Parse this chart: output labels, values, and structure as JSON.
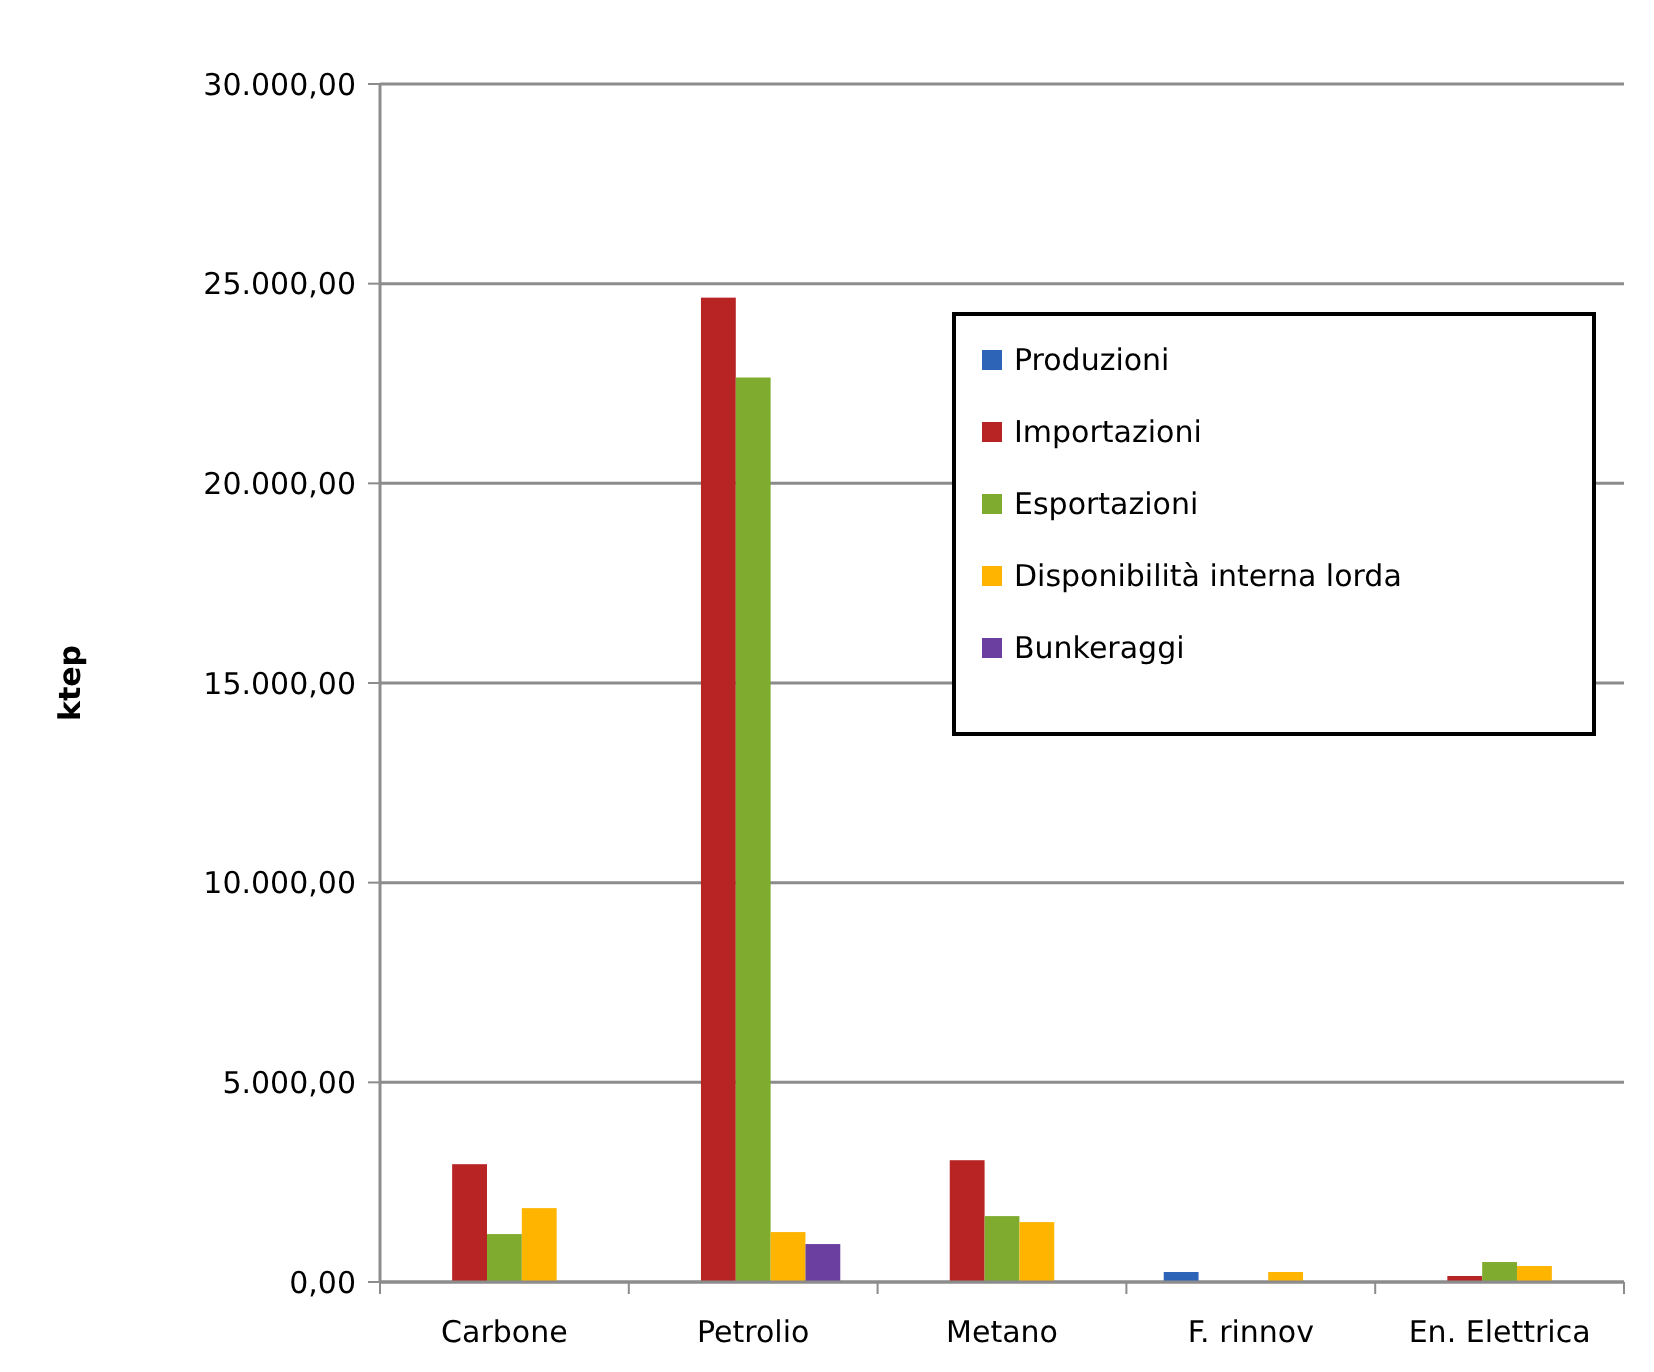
{
  "chart_data": {
    "type": "bar",
    "ylabel": "ktep",
    "categories": [
      "Carbone",
      "Petrolio",
      "Metano",
      "F. rinnov",
      "En. Elettrica"
    ],
    "series": [
      {
        "name": "Produzioni",
        "color": "#2e64b8",
        "values": [
          0,
          0,
          0,
          250,
          0
        ]
      },
      {
        "name": "Importazioni",
        "color": "#b82323",
        "values": [
          2950,
          24650,
          3050,
          0,
          150
        ]
      },
      {
        "name": "Esportazioni",
        "color": "#7fab2f",
        "values": [
          1200,
          22650,
          1650,
          0,
          500
        ]
      },
      {
        "name": "Disponibilità interna lorda",
        "color": "#ffb400",
        "values": [
          1850,
          1250,
          1500,
          250,
          400
        ]
      },
      {
        "name": "Bunkeraggi",
        "color": "#6a3fa0",
        "values": [
          0,
          950,
          0,
          0,
          0
        ]
      }
    ],
    "ylim": [
      0,
      30000
    ],
    "yticks": [
      {
        "value": 0,
        "label": "0,00"
      },
      {
        "value": 5000,
        "label": "5.000,00"
      },
      {
        "value": 10000,
        "label": "10.000,00"
      },
      {
        "value": 15000,
        "label": "15.000,00"
      },
      {
        "value": 20000,
        "label": "20.000,00"
      },
      {
        "value": 25000,
        "label": "25.000,00"
      },
      {
        "value": 30000,
        "label": "30.000,00"
      }
    ],
    "grid": "y",
    "legend": "top right"
  }
}
